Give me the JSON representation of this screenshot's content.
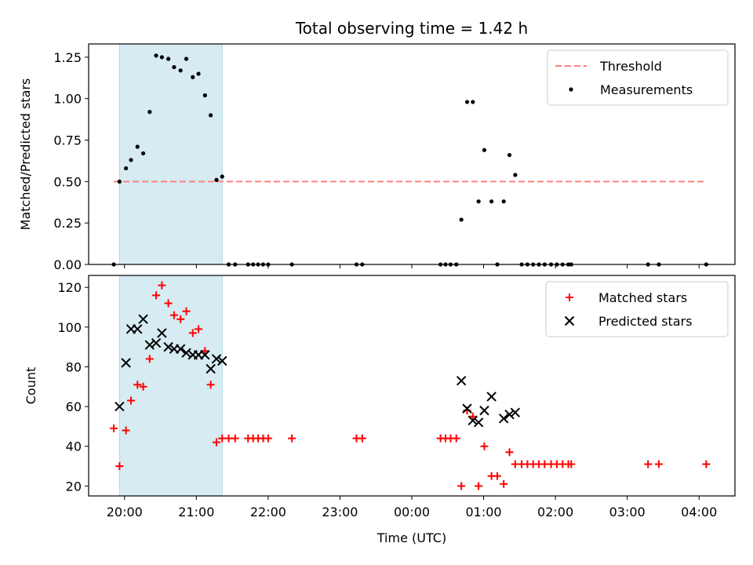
{
  "figure": {
    "title": "Total observing time = 1.42 h",
    "xlabel": "Time (UTC)"
  },
  "chart_data": [
    {
      "type": "scatter",
      "title": "Total observing time = 1.42 h",
      "ylabel": "Matched/Predicted stars",
      "xlabel": "",
      "x_unit": "hours after 20:00 UTC",
      "xlim": [
        -0.5,
        8.5
      ],
      "ylim": [
        0,
        1.33
      ],
      "yticks": [
        0,
        0.25,
        0.5,
        0.75,
        1.0,
        1.25
      ],
      "ytick_labels": [
        "0.00",
        "0.25",
        "0.50",
        "0.75",
        "1.00",
        "1.25"
      ],
      "legend_position": "top-right",
      "legend": [
        "Threshold",
        "Measurements"
      ],
      "shaded_interval": [
        -0.07,
        1.36
      ],
      "threshold": {
        "name": "Threshold",
        "y": 0.5,
        "x_range": [
          -0.15,
          8.1
        ],
        "color": "#ff8080",
        "style": "dashed"
      },
      "series": [
        {
          "name": "Measurements",
          "color": "#000000",
          "points": [
            [
              -0.15,
              0.0
            ],
            [
              -0.07,
              0.5
            ],
            [
              0.02,
              0.58
            ],
            [
              0.09,
              0.63
            ],
            [
              0.18,
              0.71
            ],
            [
              0.26,
              0.67
            ],
            [
              0.35,
              0.92
            ],
            [
              0.44,
              1.26
            ],
            [
              0.52,
              1.25
            ],
            [
              0.61,
              1.24
            ],
            [
              0.69,
              1.19
            ],
            [
              0.78,
              1.17
            ],
            [
              0.86,
              1.24
            ],
            [
              0.95,
              1.13
            ],
            [
              1.03,
              1.15
            ],
            [
              1.12,
              1.02
            ],
            [
              1.2,
              0.9
            ],
            [
              1.28,
              0.51
            ],
            [
              1.36,
              0.53
            ],
            [
              1.45,
              0.0
            ],
            [
              1.54,
              0.0
            ],
            [
              1.72,
              0.0
            ],
            [
              1.79,
              0.0
            ],
            [
              1.86,
              0.0
            ],
            [
              1.93,
              0.0
            ],
            [
              2.0,
              0.0
            ],
            [
              2.33,
              0.0
            ],
            [
              3.23,
              0.0
            ],
            [
              3.31,
              0.0
            ],
            [
              4.4,
              0.0
            ],
            [
              4.47,
              0.0
            ],
            [
              4.54,
              0.0
            ],
            [
              4.62,
              0.0
            ],
            [
              4.69,
              0.27
            ],
            [
              4.77,
              0.98
            ],
            [
              4.85,
              0.98
            ],
            [
              4.93,
              0.38
            ],
            [
              5.01,
              0.69
            ],
            [
              5.11,
              0.38
            ],
            [
              5.19,
              0.0
            ],
            [
              5.28,
              0.38
            ],
            [
              5.36,
              0.66
            ],
            [
              5.44,
              0.54
            ],
            [
              5.53,
              0.0
            ],
            [
              5.61,
              0.0
            ],
            [
              5.69,
              0.0
            ],
            [
              5.77,
              0.0
            ],
            [
              5.85,
              0.0
            ],
            [
              5.94,
              0.0
            ],
            [
              6.02,
              0.0
            ],
            [
              6.1,
              0.0
            ],
            [
              6.18,
              0.0
            ],
            [
              6.22,
              0.0
            ],
            [
              7.29,
              0.0
            ],
            [
              7.44,
              0.0
            ],
            [
              8.1,
              0.0
            ]
          ]
        }
      ]
    },
    {
      "type": "scatter",
      "title": "",
      "ylabel": "Count",
      "xlabel": "Time (UTC)",
      "x_unit": "hours after 20:00 UTC",
      "xlim": [
        -0.5,
        8.5
      ],
      "ylim": [
        15,
        126
      ],
      "xticks": [
        0,
        1,
        2,
        3,
        4,
        5,
        6,
        7,
        8
      ],
      "xtick_labels": [
        "20:00",
        "21:00",
        "22:00",
        "23:00",
        "00:00",
        "01:00",
        "02:00",
        "03:00",
        "04:00"
      ],
      "yticks": [
        20,
        40,
        60,
        80,
        100,
        120
      ],
      "ytick_labels": [
        "20",
        "40",
        "60",
        "80",
        "100",
        "120"
      ],
      "legend_position": "top-right",
      "legend": [
        "Matched stars",
        "Predicted stars"
      ],
      "shaded_interval": [
        -0.07,
        1.36
      ],
      "series": [
        {
          "name": "Matched stars",
          "marker": "plus",
          "color": "#ff0000",
          "points": [
            [
              -0.15,
              49
            ],
            [
              -0.07,
              30
            ],
            [
              0.02,
              48
            ],
            [
              0.09,
              63
            ],
            [
              0.18,
              71
            ],
            [
              0.26,
              70
            ],
            [
              0.35,
              84
            ],
            [
              0.44,
              116
            ],
            [
              0.52,
              121
            ],
            [
              0.61,
              112
            ],
            [
              0.69,
              106
            ],
            [
              0.78,
              104
            ],
            [
              0.86,
              108
            ],
            [
              0.95,
              97
            ],
            [
              1.03,
              99
            ],
            [
              1.12,
              88
            ],
            [
              1.2,
              71
            ],
            [
              1.28,
              42
            ],
            [
              1.36,
              44
            ],
            [
              1.45,
              44
            ],
            [
              1.54,
              44
            ],
            [
              1.72,
              44
            ],
            [
              1.79,
              44
            ],
            [
              1.86,
              44
            ],
            [
              1.93,
              44
            ],
            [
              2.0,
              44
            ],
            [
              2.33,
              44
            ],
            [
              3.23,
              44
            ],
            [
              3.31,
              44
            ],
            [
              4.4,
              44
            ],
            [
              4.47,
              44
            ],
            [
              4.54,
              44
            ],
            [
              4.62,
              44
            ],
            [
              4.69,
              20
            ],
            [
              4.77,
              58
            ],
            [
              4.85,
              55
            ],
            [
              4.93,
              20
            ],
            [
              5.01,
              40
            ],
            [
              5.11,
              25
            ],
            [
              5.19,
              25
            ],
            [
              5.28,
              21
            ],
            [
              5.36,
              37
            ],
            [
              5.44,
              31
            ],
            [
              5.53,
              31
            ],
            [
              5.61,
              31
            ],
            [
              5.69,
              31
            ],
            [
              5.77,
              31
            ],
            [
              5.85,
              31
            ],
            [
              5.94,
              31
            ],
            [
              6.02,
              31
            ],
            [
              6.1,
              31
            ],
            [
              6.18,
              31
            ],
            [
              6.22,
              31
            ],
            [
              7.29,
              31
            ],
            [
              7.44,
              31
            ],
            [
              8.1,
              31
            ]
          ]
        },
        {
          "name": "Predicted stars",
          "marker": "x",
          "color": "#000000",
          "points": [
            [
              -0.07,
              60
            ],
            [
              0.02,
              82
            ],
            [
              0.09,
              99
            ],
            [
              0.18,
              99
            ],
            [
              0.26,
              104
            ],
            [
              0.35,
              91
            ],
            [
              0.44,
              92
            ],
            [
              0.52,
              97
            ],
            [
              0.61,
              90
            ],
            [
              0.69,
              89
            ],
            [
              0.78,
              89
            ],
            [
              0.86,
              87
            ],
            [
              0.95,
              86
            ],
            [
              1.03,
              86
            ],
            [
              1.12,
              86
            ],
            [
              1.2,
              79
            ],
            [
              1.28,
              84
            ],
            [
              1.36,
              83
            ],
            [
              4.69,
              73
            ],
            [
              4.77,
              59
            ],
            [
              4.85,
              53
            ],
            [
              4.93,
              52
            ],
            [
              5.01,
              58
            ],
            [
              5.11,
              65
            ],
            [
              5.28,
              54
            ],
            [
              5.36,
              56
            ],
            [
              5.44,
              57
            ]
          ]
        }
      ]
    }
  ],
  "colors": {
    "shade": "#add8e6",
    "threshold": "#ff8080",
    "measurements": "#000000",
    "matched": "#ff0000",
    "predicted": "#000000"
  }
}
